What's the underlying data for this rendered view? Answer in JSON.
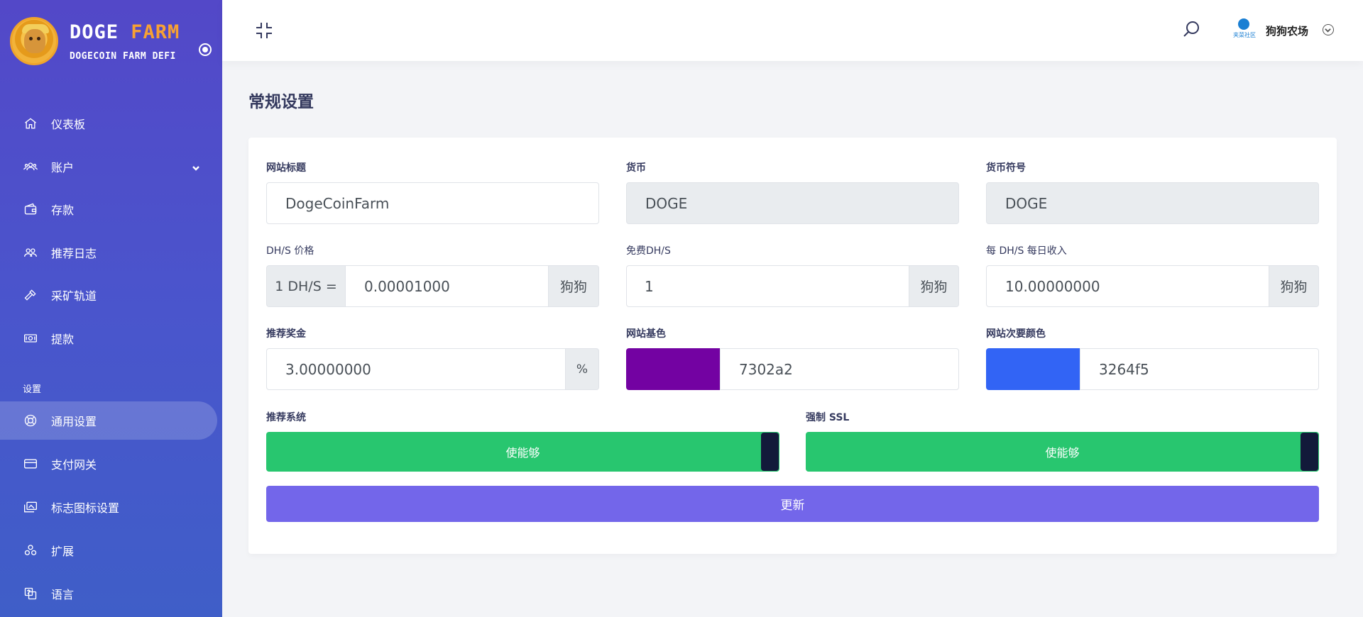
{
  "brand": {
    "title_a": "DOGE ",
    "title_b": "FARM",
    "subtitle": "DOGECOIN FARM DEFI"
  },
  "sidebar": {
    "items": [
      {
        "label": "仪表板",
        "icon": "home-icon"
      },
      {
        "label": "账户",
        "icon": "users-gear-icon"
      },
      {
        "label": "存款",
        "icon": "wallet-icon"
      },
      {
        "label": "推荐日志",
        "icon": "referral-icon"
      },
      {
        "label": "采矿轨道",
        "icon": "hammer-icon"
      },
      {
        "label": "提款",
        "icon": "money-icon"
      }
    ],
    "section_header": "设置",
    "settings_items": [
      {
        "label": "通用设置",
        "icon": "lifebuoy-icon"
      },
      {
        "label": "支付网关",
        "icon": "credit-card-icon"
      },
      {
        "label": "标志图标设置",
        "icon": "images-icon"
      },
      {
        "label": "扩展",
        "icon": "puzzle-icon"
      },
      {
        "label": "语言",
        "icon": "language-icon"
      }
    ]
  },
  "topbar": {
    "avatar_text": "夹菜社区",
    "user_name": "狗狗农场"
  },
  "page": {
    "title": "常规设置"
  },
  "form": {
    "site_title": {
      "label": "网站标题",
      "value": "DogeCoinFarm"
    },
    "currency": {
      "label": "货币",
      "value": "DOGE"
    },
    "currency_symbol": {
      "label": "货币符号",
      "value": "DOGE"
    },
    "dhs_price": {
      "label": "DH/S 价格",
      "prefix": "1 DH/S =",
      "value": "0.00001000",
      "suffix": "狗狗"
    },
    "free_dhs": {
      "label": "免费DH/S",
      "value": "1",
      "suffix": "狗狗"
    },
    "daily_income": {
      "label": "每 DH/S 每日收入",
      "value": "10.00000000",
      "suffix": "狗狗"
    },
    "referral_bonus": {
      "label": "推荐奖金",
      "value": "3.00000000",
      "suffix": "%"
    },
    "base_color": {
      "label": "网站基色",
      "value": "7302a2",
      "color": "#7302a2"
    },
    "secondary_color": {
      "label": "网站次要颜色",
      "value": "3264f5",
      "color": "#3264f5"
    },
    "referral_system": {
      "label": "推荐系统",
      "state": "使能够"
    },
    "force_ssl": {
      "label": "强制 SSL",
      "state": "使能够"
    },
    "update_label": "更新"
  }
}
